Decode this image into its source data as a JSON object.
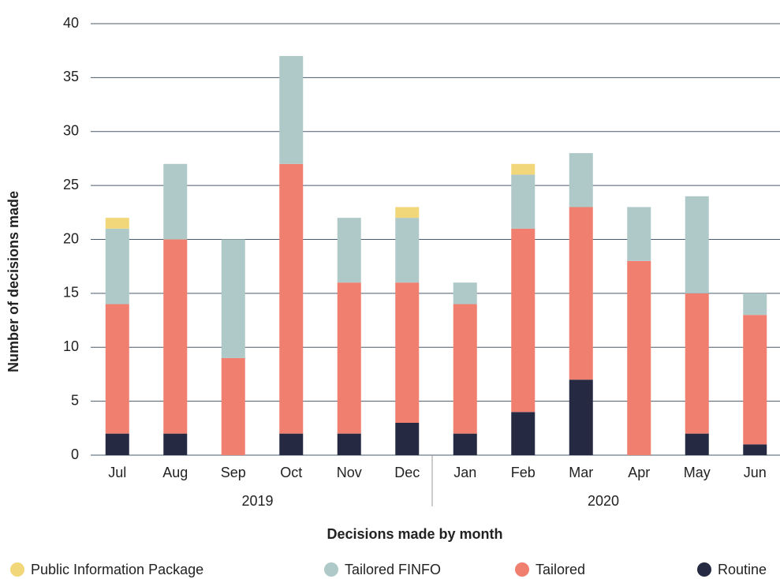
{
  "chart_data": {
    "type": "stacked_bar",
    "y_axis_label": "Number of decisions made",
    "x_axis_label": "Decisions made by month",
    "categories": [
      "Jul",
      "Aug",
      "Sep",
      "Oct",
      "Nov",
      "Dec",
      "Jan",
      "Feb",
      "Mar",
      "Apr",
      "May",
      "Jun"
    ],
    "year_groups": [
      {
        "label": "2019",
        "count": 6
      },
      {
        "label": "2020",
        "count": 6
      }
    ],
    "series": [
      {
        "name": "Public Information Package",
        "color": "#f2d77a",
        "values": [
          1,
          0,
          0,
          0,
          0,
          1,
          0,
          1,
          0,
          0,
          0,
          0
        ]
      },
      {
        "name": "Tailored FINFO",
        "color": "#aec9c7",
        "values": [
          7,
          7,
          11,
          10,
          6,
          6,
          2,
          5,
          5,
          5,
          9,
          2
        ]
      },
      {
        "name": "Tailored",
        "color": "#f07f6f",
        "values": [
          12,
          18,
          9,
          25,
          14,
          13,
          12,
          17,
          16,
          18,
          13,
          12
        ]
      },
      {
        "name": "Routine",
        "color": "#252a42",
        "values": [
          2,
          2,
          0,
          2,
          2,
          3,
          2,
          4,
          7,
          0,
          2,
          1
        ]
      }
    ],
    "ylim": [
      0,
      40
    ],
    "yticks": [
      0,
      5,
      10,
      15,
      20,
      25,
      30,
      35,
      40
    ],
    "grid": true
  }
}
